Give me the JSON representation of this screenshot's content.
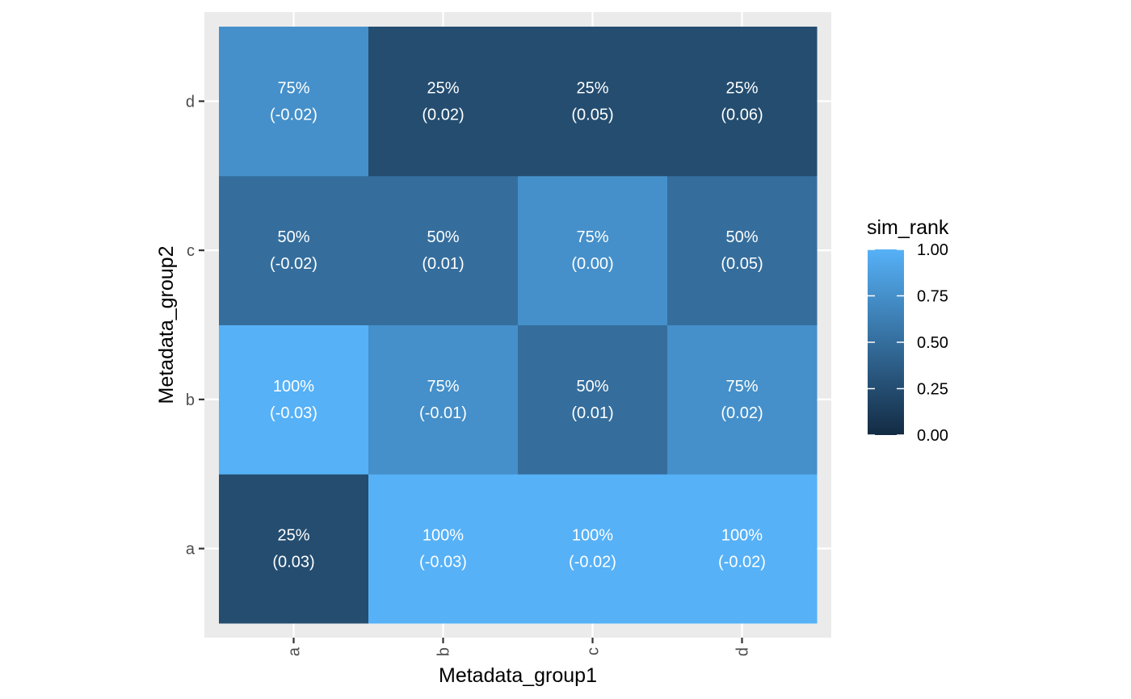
{
  "chart_data": {
    "type": "heatmap",
    "xlabel": "Metadata_group1",
    "ylabel": "Metadata_group2",
    "x_categories": [
      "a",
      "b",
      "c",
      "d"
    ],
    "y_categories": [
      "a",
      "b",
      "c",
      "d"
    ],
    "cells": [
      {
        "x": "a",
        "y": "a",
        "sim_rank": 0.25,
        "label": "25%",
        "value_label": "(0.03)"
      },
      {
        "x": "b",
        "y": "a",
        "sim_rank": 1.0,
        "label": "100%",
        "value_label": "(-0.03)"
      },
      {
        "x": "c",
        "y": "a",
        "sim_rank": 1.0,
        "label": "100%",
        "value_label": "(-0.02)"
      },
      {
        "x": "d",
        "y": "a",
        "sim_rank": 1.0,
        "label": "100%",
        "value_label": "(-0.02)"
      },
      {
        "x": "a",
        "y": "b",
        "sim_rank": 1.0,
        "label": "100%",
        "value_label": "(-0.03)"
      },
      {
        "x": "b",
        "y": "b",
        "sim_rank": 0.75,
        "label": "75%",
        "value_label": "(-0.01)"
      },
      {
        "x": "c",
        "y": "b",
        "sim_rank": 0.5,
        "label": "50%",
        "value_label": "(0.01)"
      },
      {
        "x": "d",
        "y": "b",
        "sim_rank": 0.75,
        "label": "75%",
        "value_label": "(0.02)"
      },
      {
        "x": "a",
        "y": "c",
        "sim_rank": 0.5,
        "label": "50%",
        "value_label": "(-0.02)"
      },
      {
        "x": "b",
        "y": "c",
        "sim_rank": 0.5,
        "label": "50%",
        "value_label": "(0.01)"
      },
      {
        "x": "c",
        "y": "c",
        "sim_rank": 0.75,
        "label": "75%",
        "value_label": "(0.00)"
      },
      {
        "x": "d",
        "y": "c",
        "sim_rank": 0.5,
        "label": "50%",
        "value_label": "(0.05)"
      },
      {
        "x": "a",
        "y": "d",
        "sim_rank": 0.75,
        "label": "75%",
        "value_label": "(-0.02)"
      },
      {
        "x": "b",
        "y": "d",
        "sim_rank": 0.25,
        "label": "25%",
        "value_label": "(0.02)"
      },
      {
        "x": "c",
        "y": "d",
        "sim_rank": 0.25,
        "label": "25%",
        "value_label": "(0.05)"
      },
      {
        "x": "d",
        "y": "d",
        "sim_rank": 0.25,
        "label": "25%",
        "value_label": "(0.06)"
      }
    ],
    "legend": {
      "title": "sim_rank",
      "position": "right",
      "range": [
        0,
        1
      ],
      "breaks": [
        0.0,
        0.25,
        0.5,
        0.75,
        1.0
      ],
      "break_labels": [
        "0.00",
        "0.25",
        "0.50",
        "0.75",
        "1.00"
      ],
      "low_color": "#132B43",
      "high_color": "#56B1F7"
    },
    "panel_background": "#EBEBEB",
    "grid": true
  }
}
